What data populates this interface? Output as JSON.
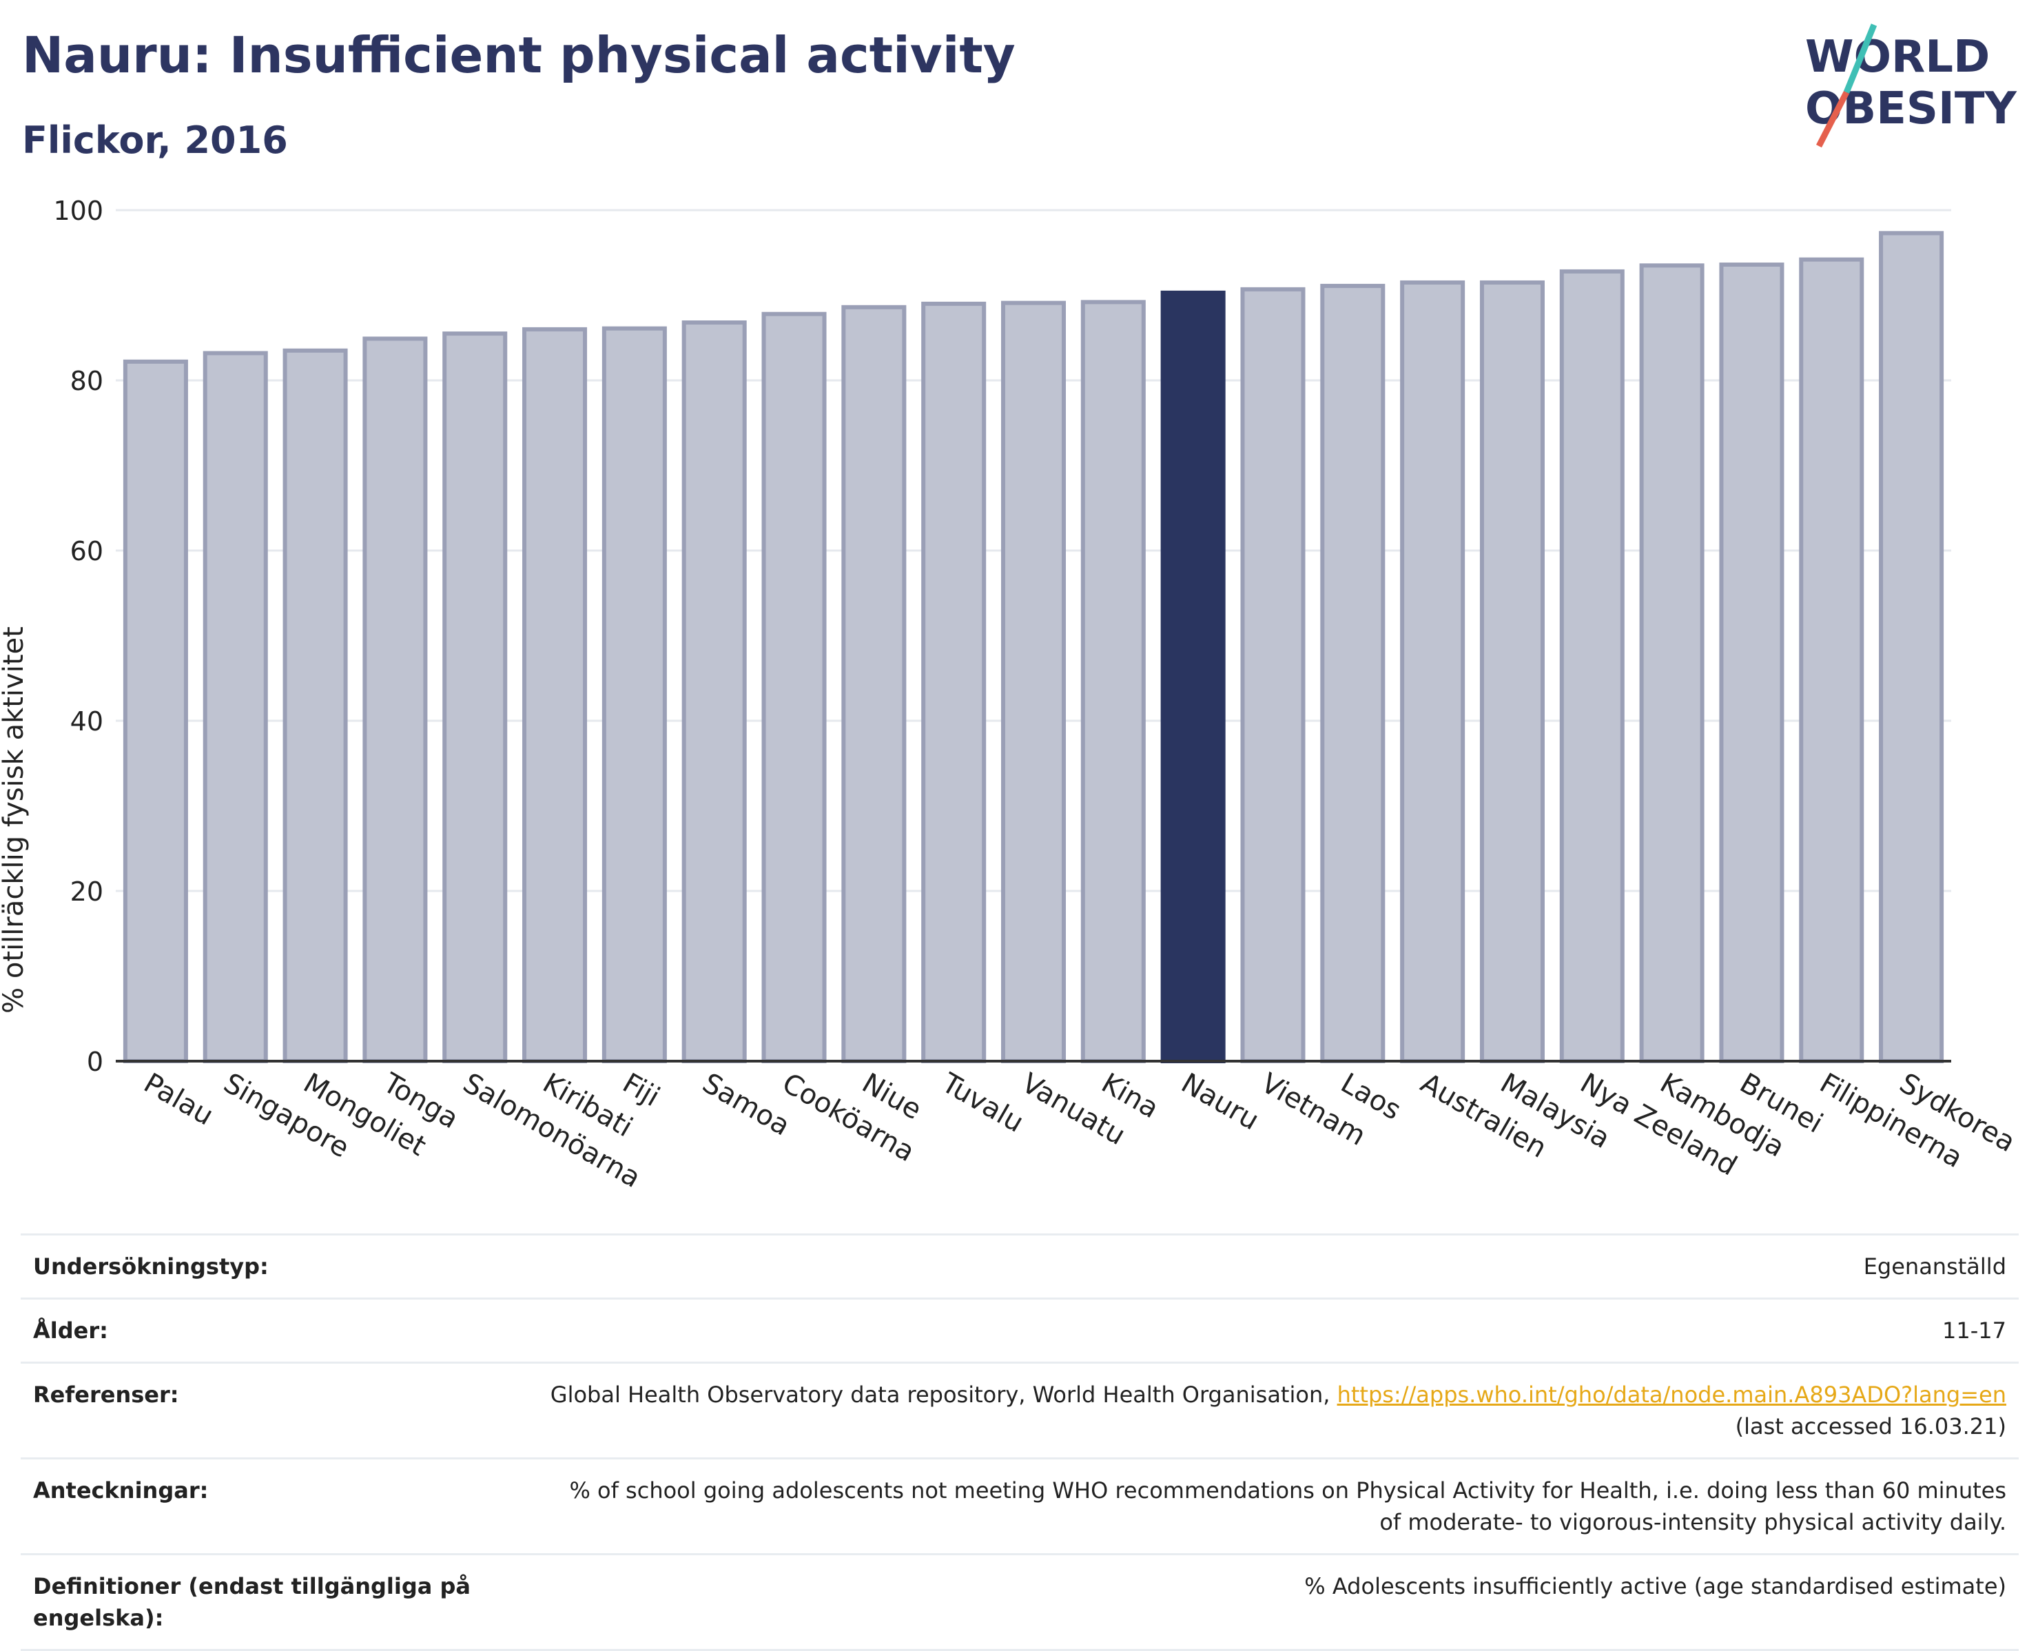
{
  "header": {
    "title": "Nauru: Insufficient physical activity",
    "subtitle": "Flickor, 2016"
  },
  "logo": {
    "line1": "WORLD",
    "line2": "OBESITY"
  },
  "colors": {
    "bar": "#bfc3d1",
    "bar_stroke": "#9a9fb6",
    "highlight": "#2a3560",
    "title": "#2d3561",
    "grid": "#e6e9ee",
    "link": "#e6a817"
  },
  "chart_data": {
    "type": "bar",
    "title": "Nauru: Insufficient physical activity",
    "subtitle": "Flickor, 2016",
    "xlabel": "",
    "ylabel": "% otillräcklig fysisk aktivitet",
    "ylim": [
      0,
      100
    ],
    "yticks": [
      0,
      20,
      40,
      60,
      80,
      100
    ],
    "grid": true,
    "highlight": "Nauru",
    "categories": [
      "Palau",
      "Singapore",
      "Mongoliet",
      "Tonga",
      "Salomonöarna",
      "Kiribati",
      "Fiji",
      "Samoa",
      "Cooköarna",
      "Niue",
      "Tuvalu",
      "Vanuatu",
      "Kina",
      "Nauru",
      "Vietnam",
      "Laos",
      "Australien",
      "Malaysia",
      "Nya Zeeland",
      "Kambodja",
      "Brunei",
      "Filippinerna",
      "Sydkorea"
    ],
    "values": [
      82.2,
      83.2,
      83.5,
      84.9,
      85.5,
      86.0,
      86.1,
      86.8,
      87.8,
      88.6,
      89.0,
      89.1,
      89.2,
      90.3,
      90.7,
      91.1,
      91.5,
      91.5,
      92.8,
      93.5,
      93.6,
      94.2,
      97.3
    ]
  },
  "info": {
    "survey_type_label": "Undersökningstyp:",
    "survey_type_value": "Egenanställd",
    "age_label": "Ålder:",
    "age_value": "11-17",
    "references_label": "Referenser:",
    "references_text": "Global Health Observatory data repository, World Health Organisation, ",
    "references_link": "https://apps.who.int/gho/data/node.main.A893ADO?lang=en",
    "references_accessed": "(last accessed 16.03.21)",
    "notes_label": "Anteckningar:",
    "notes_value": "% of school going adolescents not meeting WHO recommendations on Physical Activity for Health, i.e. doing less than 60 minutes of moderate- to vigorous-intensity physical activity daily.",
    "definitions_label": "Definitioner (endast tillgängliga på engelska):",
    "definitions_value": "% Adolescents insufficiently active (age standardised estimate)"
  }
}
